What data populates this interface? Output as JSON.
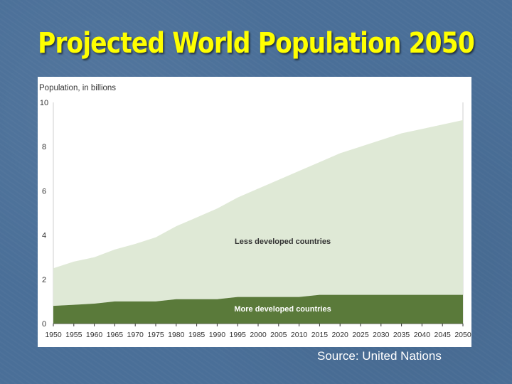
{
  "slide": {
    "title": "Projected World Population 2050",
    "source": "Source: United Nations"
  },
  "colors": {
    "background": "#4a6f98",
    "title": "#ffff00",
    "less_developed": "#dfe9d6",
    "more_developed": "#5a7a3a"
  },
  "chart_data": {
    "type": "area",
    "stacked": true,
    "title": "",
    "ylabel": "Population, in billions",
    "xlabel": "",
    "ylim": [
      0,
      10
    ],
    "yticks": [
      0,
      2,
      4,
      6,
      8,
      10
    ],
    "xlim": [
      1950,
      2050
    ],
    "xticks": [
      1950,
      1955,
      1960,
      1965,
      1970,
      1975,
      1980,
      1985,
      1990,
      1995,
      2000,
      2005,
      2010,
      2015,
      2020,
      2025,
      2030,
      2035,
      2040,
      2045,
      2050
    ],
    "x": [
      1950,
      1955,
      1960,
      1965,
      1970,
      1975,
      1980,
      1985,
      1990,
      1995,
      2000,
      2005,
      2010,
      2015,
      2020,
      2025,
      2030,
      2035,
      2040,
      2045,
      2050
    ],
    "series": [
      {
        "name": "More developed countries",
        "values": [
          0.8,
          0.85,
          0.9,
          1.0,
          1.0,
          1.0,
          1.1,
          1.1,
          1.1,
          1.2,
          1.2,
          1.2,
          1.2,
          1.3,
          1.3,
          1.3,
          1.3,
          1.3,
          1.3,
          1.3,
          1.3
        ]
      },
      {
        "name": "Less developed countries",
        "values": [
          1.7,
          1.95,
          2.1,
          2.35,
          2.6,
          2.9,
          3.3,
          3.7,
          4.1,
          4.5,
          4.9,
          5.3,
          5.7,
          6.0,
          6.4,
          6.7,
          7.0,
          7.3,
          7.5,
          7.7,
          7.9
        ]
      }
    ],
    "annotations": [
      "Less developed countries",
      "More developed countries"
    ]
  }
}
